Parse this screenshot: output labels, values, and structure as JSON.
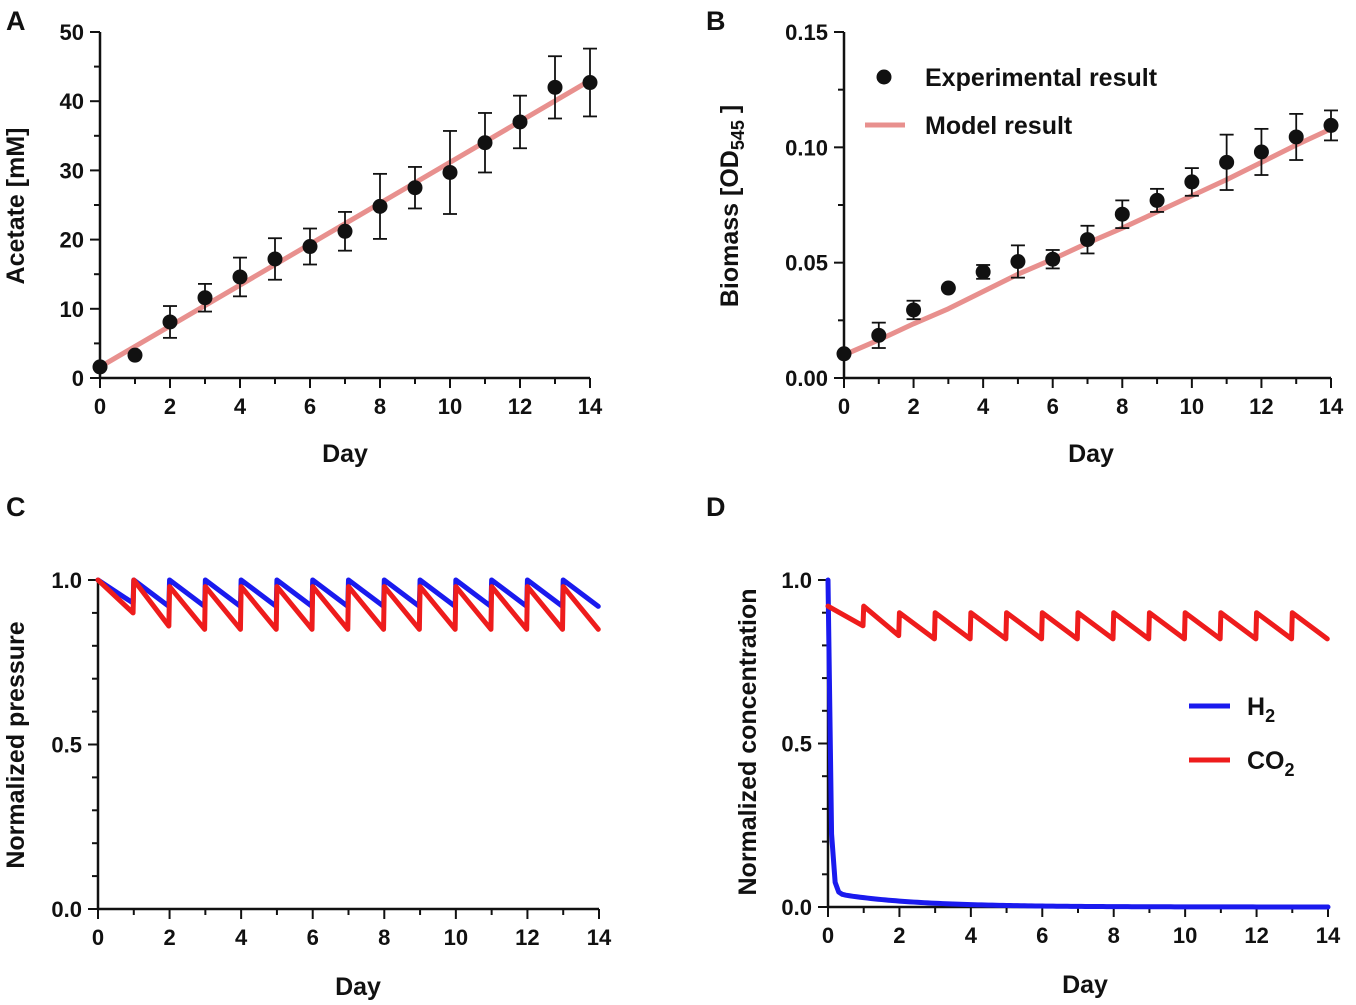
{
  "figure": {
    "panel_labels": [
      "A",
      "B",
      "C",
      "D"
    ]
  },
  "chart_data": [
    {
      "panel": "A",
      "type": "scatter",
      "xlabel": "Day",
      "ylabel": "Acetate [mM]",
      "xlim": [
        0,
        14
      ],
      "ylim": [
        0,
        50
      ],
      "xticks": [
        0,
        2,
        4,
        6,
        8,
        10,
        12,
        14
      ],
      "yticks": [
        0,
        10,
        20,
        30,
        40,
        50
      ],
      "series": [
        {
          "name": "Experimental result",
          "kind": "points",
          "color": "#111111",
          "x": [
            0,
            1,
            2,
            3,
            4,
            5,
            6,
            7,
            8,
            9,
            10,
            11,
            12,
            13,
            14
          ],
          "y": [
            1.6,
            3.3,
            8.1,
            11.6,
            14.6,
            17.2,
            19.0,
            21.2,
            24.8,
            27.5,
            29.7,
            34.0,
            37.0,
            42.0,
            42.7
          ],
          "err": [
            0,
            0,
            2.3,
            2.0,
            2.8,
            3.0,
            2.6,
            2.8,
            4.7,
            3.0,
            6.0,
            4.3,
            3.8,
            4.5,
            4.9
          ]
        },
        {
          "name": "Model result",
          "kind": "line",
          "color": "#e8908e",
          "x": [
            0,
            14
          ],
          "y": [
            1.6,
            43.0
          ]
        }
      ]
    },
    {
      "panel": "B",
      "type": "scatter",
      "xlabel": "Day",
      "ylabel_main": "Biomass [OD",
      "ylabel_sub": "545",
      "ylabel_end": " ]",
      "xlim": [
        0,
        14
      ],
      "ylim": [
        0,
        0.15
      ],
      "xticks": [
        0,
        2,
        4,
        6,
        8,
        10,
        12,
        14
      ],
      "yticks": [
        0.0,
        0.05,
        0.1,
        0.15
      ],
      "ytick_labels": [
        "0.00",
        "0.05",
        "0.10",
        "0.15"
      ],
      "legend": [
        "Experimental result",
        "Model result"
      ],
      "series": [
        {
          "name": "Experimental result",
          "kind": "points",
          "color": "#111111",
          "x": [
            0,
            1,
            2,
            3,
            4,
            5,
            6,
            7,
            8,
            9,
            10,
            11,
            12,
            13,
            14
          ],
          "y": [
            0.0105,
            0.0185,
            0.0295,
            0.039,
            0.046,
            0.0505,
            0.0515,
            0.06,
            0.071,
            0.077,
            0.085,
            0.0935,
            0.098,
            0.1045,
            0.1095
          ],
          "err": [
            0,
            0.0055,
            0.004,
            0,
            0.003,
            0.007,
            0.004,
            0.006,
            0.006,
            0.005,
            0.006,
            0.012,
            0.01,
            0.01,
            0.0065
          ]
        },
        {
          "name": "Model result",
          "kind": "line",
          "color": "#e8908e",
          "x": [
            0,
            1,
            2,
            3,
            4,
            5,
            6,
            7,
            8,
            9,
            10,
            11,
            12,
            13,
            14
          ],
          "y": [
            0.01,
            0.0165,
            0.0235,
            0.03,
            0.0375,
            0.045,
            0.0515,
            0.0585,
            0.065,
            0.072,
            0.079,
            0.086,
            0.0935,
            0.101,
            0.108
          ]
        }
      ]
    },
    {
      "panel": "C",
      "type": "line",
      "xlabel": "Day",
      "ylabel": "Normalized pressure",
      "xlim": [
        0,
        14
      ],
      "ylim": [
        0,
        1.0
      ],
      "xticks": [
        0,
        2,
        4,
        6,
        8,
        10,
        12,
        14
      ],
      "yticks": [
        0.0,
        0.5,
        1.0
      ],
      "ytick_labels": [
        "0.0",
        "0.5",
        "1.0"
      ],
      "series": [
        {
          "name": "H2",
          "color": "#1a1aee",
          "kind": "sawtooth",
          "period": 1,
          "days": 14,
          "peaks": [
            1.0
          ],
          "troughs": [
            0.93,
            0.92
          ]
        },
        {
          "name": "CO2",
          "color": "#ee1c1c",
          "kind": "sawtooth",
          "period": 1,
          "days": 14,
          "peaks": [
            1.0,
            0.98
          ],
          "troughs": [
            0.9,
            0.86,
            0.85
          ]
        }
      ]
    },
    {
      "panel": "D",
      "type": "line",
      "xlabel": "Day",
      "ylabel": "Normalized concentration",
      "xlim": [
        0,
        14
      ],
      "ylim": [
        0,
        1.0
      ],
      "xticks": [
        0,
        2,
        4,
        6,
        8,
        10,
        12,
        14
      ],
      "yticks": [
        0.0,
        0.5,
        1.0
      ],
      "ytick_labels": [
        "0.0",
        "0.5",
        "1.0"
      ],
      "legend": [
        {
          "main": "H",
          "sub": "2"
        },
        {
          "main": "CO",
          "sub": "2"
        }
      ],
      "series": [
        {
          "name": "H2",
          "color": "#1a1aee",
          "kind": "decay",
          "start": 1.0,
          "end": 0.0
        },
        {
          "name": "CO2",
          "color": "#ee1c1c",
          "kind": "sawtooth",
          "period": 1,
          "days": 14,
          "peaks": [
            0.92,
            0.9
          ],
          "troughs": [
            0.86,
            0.83,
            0.82
          ]
        }
      ]
    }
  ]
}
